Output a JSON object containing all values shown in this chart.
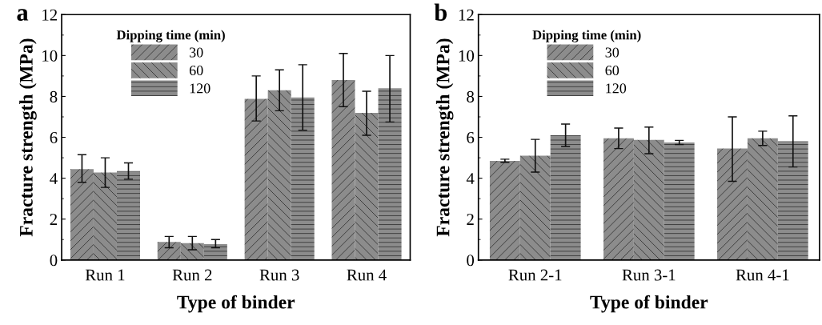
{
  "chart_data": [
    {
      "type": "bar",
      "title": "a",
      "xlabel": "Type of binder",
      "ylabel": "Fracture strength (MPa)",
      "legend_title": "Dipping time (min)",
      "legend": "top left",
      "categories": [
        "Run 1",
        "Run 2",
        "Run 3",
        "Run 4"
      ],
      "ylim": [
        0,
        12
      ],
      "yticks": [
        0,
        2,
        4,
        6,
        8,
        10,
        12
      ],
      "series": [
        {
          "name": "30",
          "color": "#8c8c8c",
          "values": [
            4.45,
            0.88,
            7.88,
            8.8
          ],
          "errors": [
            [
              3.8,
              5.15
            ],
            [
              0.6,
              1.15
            ],
            [
              6.8,
              9.0
            ],
            [
              7.5,
              10.1
            ]
          ]
        },
        {
          "name": "60",
          "color": "#8c8c8c",
          "values": [
            4.28,
            0.82,
            8.3,
            7.2
          ],
          "errors": [
            [
              3.55,
              5.0
            ],
            [
              0.5,
              1.15
            ],
            [
              7.3,
              9.3
            ],
            [
              6.1,
              8.25
            ]
          ]
        },
        {
          "name": "120",
          "color": "#8c8c8c",
          "values": [
            4.35,
            0.78,
            7.95,
            8.4
          ],
          "errors": [
            [
              3.95,
              4.75
            ],
            [
              0.6,
              1.0
            ],
            [
              6.35,
              9.55
            ],
            [
              6.75,
              10.0
            ]
          ]
        }
      ]
    },
    {
      "type": "bar",
      "title": "b",
      "xlabel": "Type of binder",
      "ylabel": "Fracture strength (MPa)",
      "legend_title": "Dipping time (min)",
      "legend": "top left",
      "categories": [
        "Run 2-1",
        "Run 3-1",
        "Run 4-1"
      ],
      "ylim": [
        0,
        12
      ],
      "yticks": [
        0,
        2,
        4,
        6,
        8,
        10,
        12
      ],
      "series": [
        {
          "name": "30",
          "color": "#8c8c8c",
          "values": [
            4.85,
            5.95,
            5.45
          ],
          "errors": [
            [
              4.78,
              4.93
            ],
            [
              5.45,
              6.45
            ],
            [
              3.85,
              7.0
            ]
          ]
        },
        {
          "name": "60",
          "color": "#8c8c8c",
          "values": [
            5.1,
            5.87,
            5.95
          ],
          "errors": [
            [
              4.3,
              5.9
            ],
            [
              5.2,
              6.5
            ],
            [
              5.6,
              6.3
            ]
          ]
        },
        {
          "name": "120",
          "color": "#8c8c8c",
          "values": [
            6.1,
            5.75,
            5.82
          ],
          "errors": [
            [
              5.55,
              6.65
            ],
            [
              5.65,
              5.85
            ],
            [
              4.55,
              7.05
            ]
          ]
        }
      ]
    }
  ]
}
